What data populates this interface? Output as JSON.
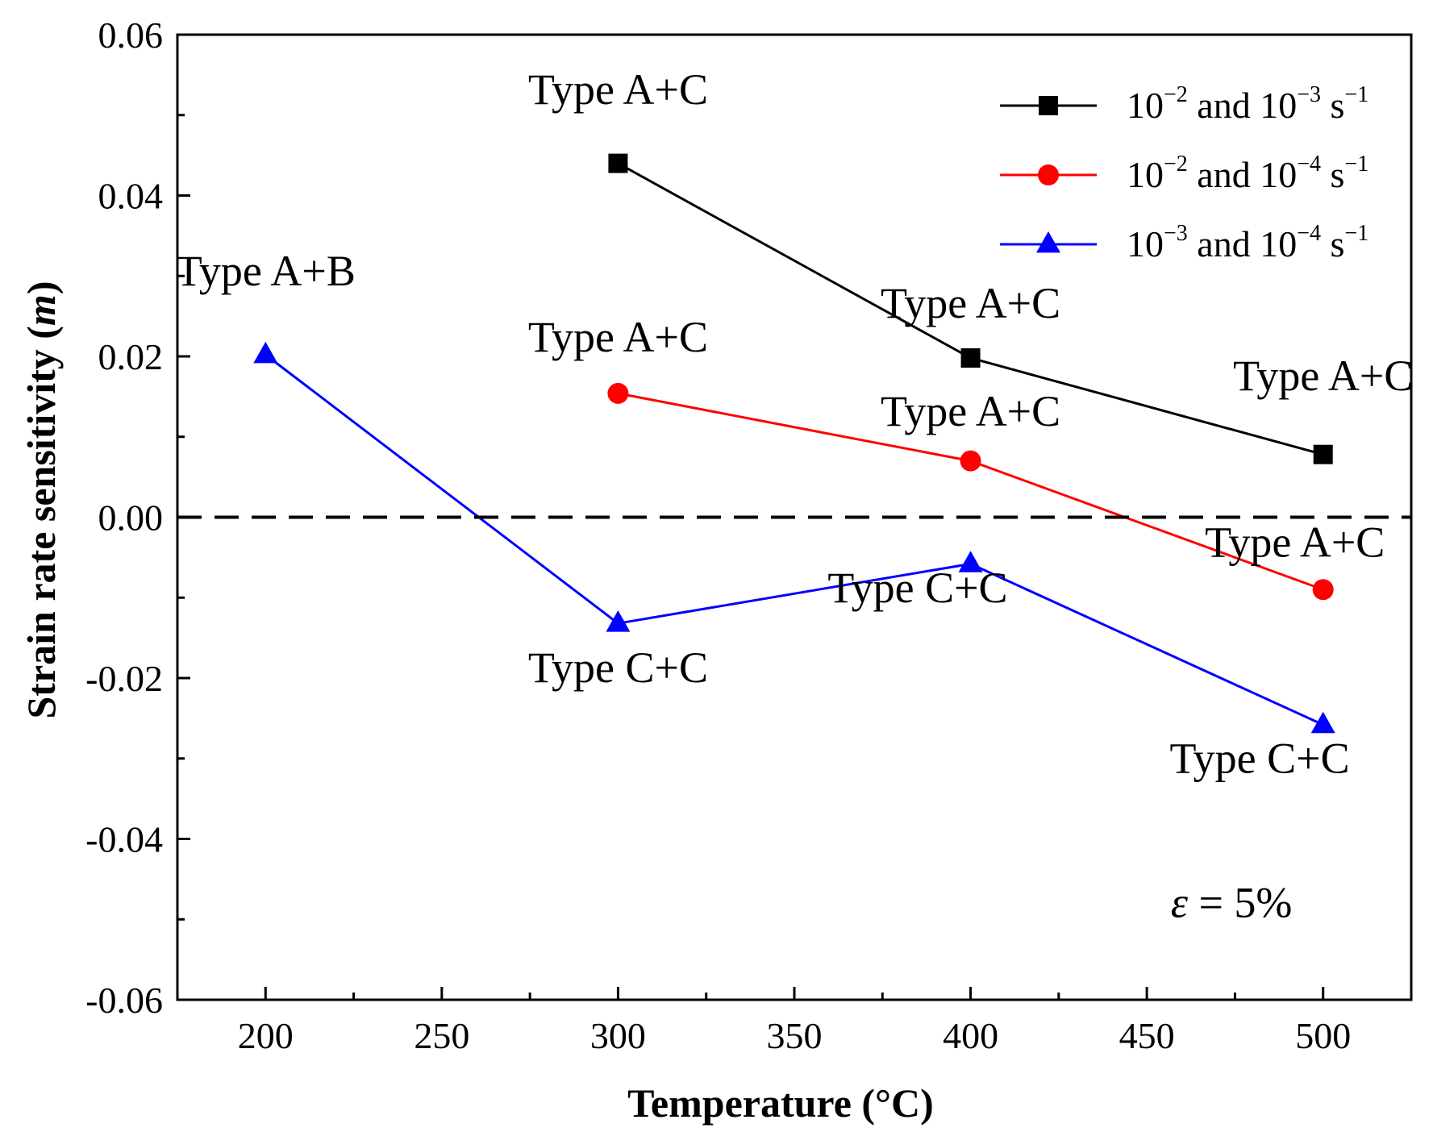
{
  "chart_data": {
    "type": "line",
    "xlabel": "Temperature (°C)",
    "ylabel_main": "Strain rate sensitivity (",
    "ylabel_var": "m",
    "ylabel_end": ")",
    "xlim": [
      175,
      525
    ],
    "ylim": [
      -0.06,
      0.06
    ],
    "xticks": [
      200,
      250,
      300,
      350,
      400,
      450,
      500
    ],
    "xtick_labels": [
      "200",
      "250",
      "300",
      "350",
      "400",
      "450",
      "500"
    ],
    "yticks": [
      -0.06,
      -0.04,
      -0.02,
      0.0,
      0.02,
      0.04,
      0.06
    ],
    "ytick_labels": [
      "-0.06",
      "-0.04",
      "-0.02",
      "0.00",
      "0.02",
      "0.04",
      "0.06"
    ],
    "reference_line": {
      "y": 0.0,
      "style": "dashed",
      "color": "#000000"
    },
    "legend_position": "top-right",
    "series": [
      {
        "name": "10^-2 and 10^-3 s^-1",
        "legend_parts": [
          "10",
          "−2",
          " and 10",
          "−3",
          " s",
          "−1"
        ],
        "color": "#000000",
        "marker": "square",
        "x": [
          300,
          400,
          500
        ],
        "y": [
          0.044,
          0.0198,
          0.0078
        ]
      },
      {
        "name": "10^-2 and 10^-4 s^-1",
        "legend_parts": [
          "10",
          "−2",
          " and 10",
          "−4",
          " s",
          "−1"
        ],
        "color": "#ff0000",
        "marker": "circle",
        "x": [
          300,
          400,
          500
        ],
        "y": [
          0.0154,
          0.007,
          -0.009
        ]
      },
      {
        "name": "10^-3 and 10^-4 s^-1",
        "legend_parts": [
          "10",
          "−3",
          " and 10",
          "−4",
          " s",
          "−1"
        ],
        "color": "#0000ff",
        "marker": "triangle",
        "x": [
          200,
          300,
          400,
          500
        ],
        "y": [
          0.0202,
          -0.0132,
          -0.0058,
          -0.0258
        ]
      }
    ],
    "annotations": [
      {
        "text": "Type A+C",
        "x": 300,
        "y": 0.0514
      },
      {
        "text": "Type A+B",
        "x": 200,
        "y": 0.0288
      },
      {
        "text": "Type A+C",
        "x": 400,
        "y": 0.0248
      },
      {
        "text": "Type A+C",
        "x": 300,
        "y": 0.0206
      },
      {
        "text": "Type A+C",
        "x": 500,
        "y": 0.0158
      },
      {
        "text": "Type A+C",
        "x": 400,
        "y": 0.0114
      },
      {
        "text": "Type A+C",
        "x": 492,
        "y": -0.0049
      },
      {
        "text": "Type C+C",
        "x": 385,
        "y": -0.0106
      },
      {
        "text": "Type C+C",
        "x": 300,
        "y": -0.0205
      },
      {
        "text": "Type C+C",
        "x": 482,
        "y": -0.0318
      }
    ],
    "strain_note": {
      "var": "ε",
      "text": " = 5%",
      "x": 474,
      "y": -0.0497
    }
  }
}
